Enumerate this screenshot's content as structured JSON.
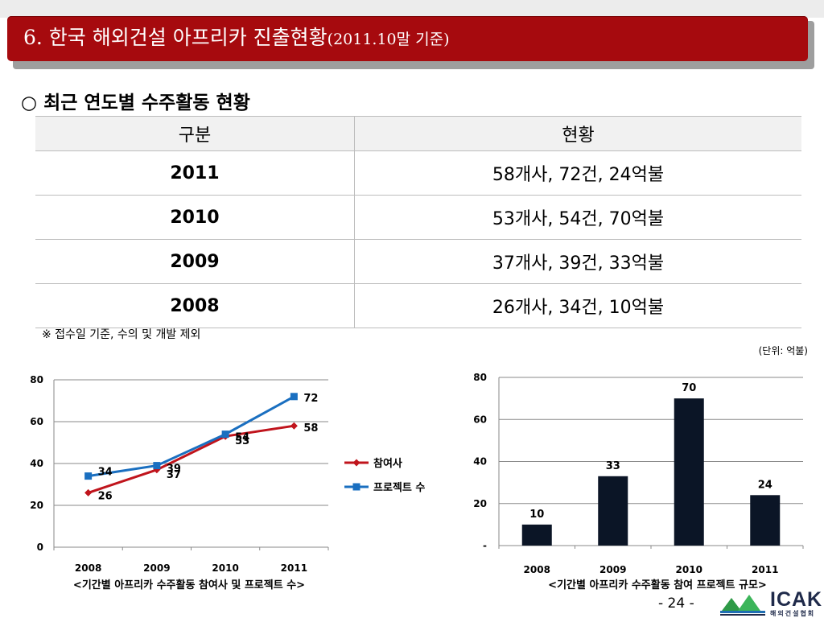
{
  "slide": {
    "title": "6. 한국 해외건설 아프리카 진출현황",
    "title_suffix": "(2011.10말 기준)",
    "section_heading": "○ 최근 연도별 수주활동 현황",
    "note": "※ 접수일 기준, 수의 및 개발 제외",
    "unit": "(단위: 억불)",
    "page_number": "- 24 -",
    "logo_text": "ICAK",
    "logo_subtext": "해외건설협회"
  },
  "table": {
    "headers": [
      "구분",
      "현황"
    ],
    "rows": [
      [
        "2011",
        "58개사, 72건, 24억불"
      ],
      [
        "2010",
        "53개사, 54건, 70억불"
      ],
      [
        "2009",
        "37개사, 39건, 33억불"
      ],
      [
        "2008",
        "26개사, 34건, 10억불"
      ]
    ]
  },
  "chart_data": [
    {
      "type": "line",
      "x": [
        "2008",
        "2009",
        "2010",
        "2011"
      ],
      "series": [
        {
          "name": "참여사",
          "values": [
            26,
            37,
            53,
            58
          ],
          "color": "#c0141c"
        },
        {
          "name": "프로젝트 수",
          "values": [
            34,
            39,
            54,
            72
          ],
          "color": "#1a6fc0"
        }
      ],
      "ylim": [
        0,
        80
      ],
      "yticks": [
        "0",
        "20",
        "40",
        "60",
        "80"
      ],
      "caption": "<기간별 아프리카 수주활동 참여사 및 프로젝트 수>",
      "grid": true,
      "legend": "right"
    },
    {
      "type": "bar",
      "categories": [
        "2008",
        "2009",
        "2010",
        "2011"
      ],
      "values": [
        10,
        33,
        70,
        24
      ],
      "ylim": [
        0,
        80
      ],
      "yticks": [
        "-",
        "20",
        "40",
        "60",
        "80"
      ],
      "caption": "<기간별 아프리카 수주활동 참여 프로젝트 규모>",
      "bar_color": "#0b1526",
      "grid": true
    }
  ]
}
